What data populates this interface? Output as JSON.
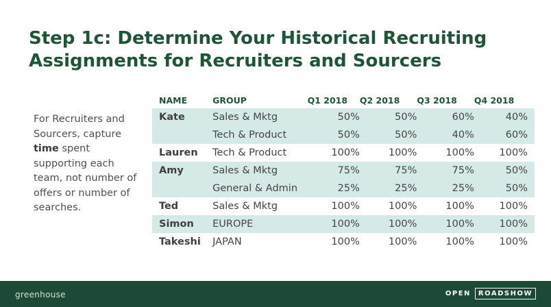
{
  "slide": {
    "title_line1": "Step 1c: Determine Your Historical Recruiting",
    "title_line2": "Assignments for Recruiters and Sourcers",
    "note": {
      "before": "For Recruiters and Sourcers, capture ",
      "bold": "time",
      "after": " spent supporting each team, not number of offers or number of searches."
    }
  },
  "table": {
    "headers": [
      "NAME",
      "GROUP",
      "Q1 2018",
      "Q2 2018",
      "Q3 2018",
      "Q4 2018"
    ],
    "rows": [
      {
        "name": "Kate",
        "group": "Sales & Mktg",
        "q1": "50%",
        "q2": "50%",
        "q3": "60%",
        "q4": "40%"
      },
      {
        "name": "",
        "group": "Tech & Product",
        "q1": "50%",
        "q2": "50%",
        "q3": "40%",
        "q4": "60%"
      },
      {
        "name": "Lauren",
        "group": "Tech & Product",
        "q1": "100%",
        "q2": "100%",
        "q3": "100%",
        "q4": "100%"
      },
      {
        "name": "Amy",
        "group": "Sales & Mktg",
        "q1": "75%",
        "q2": "75%",
        "q3": "75%",
        "q4": "50%"
      },
      {
        "name": "",
        "group": "General & Admin",
        "q1": "25%",
        "q2": "25%",
        "q3": "25%",
        "q4": "50%"
      },
      {
        "name": "Ted",
        "group": "Sales & Mktg",
        "q1": "100%",
        "q2": "100%",
        "q3": "100%",
        "q4": "100%"
      },
      {
        "name": "Simon",
        "group": "EUROPE",
        "q1": "100%",
        "q2": "100%",
        "q3": "100%",
        "q4": "100%"
      },
      {
        "name": "Takeshi",
        "group": "JAPAN",
        "q1": "100%",
        "q2": "100%",
        "q3": "100%",
        "q4": "100%"
      }
    ]
  },
  "footer": {
    "brand": "greenhouse",
    "logo_open": "OPEN",
    "logo_roadshow": "ROADSHOW"
  },
  "colors": {
    "title": "#1f5437",
    "row_shade": "#d5eae6",
    "footer_bg": "#1d4a36"
  }
}
